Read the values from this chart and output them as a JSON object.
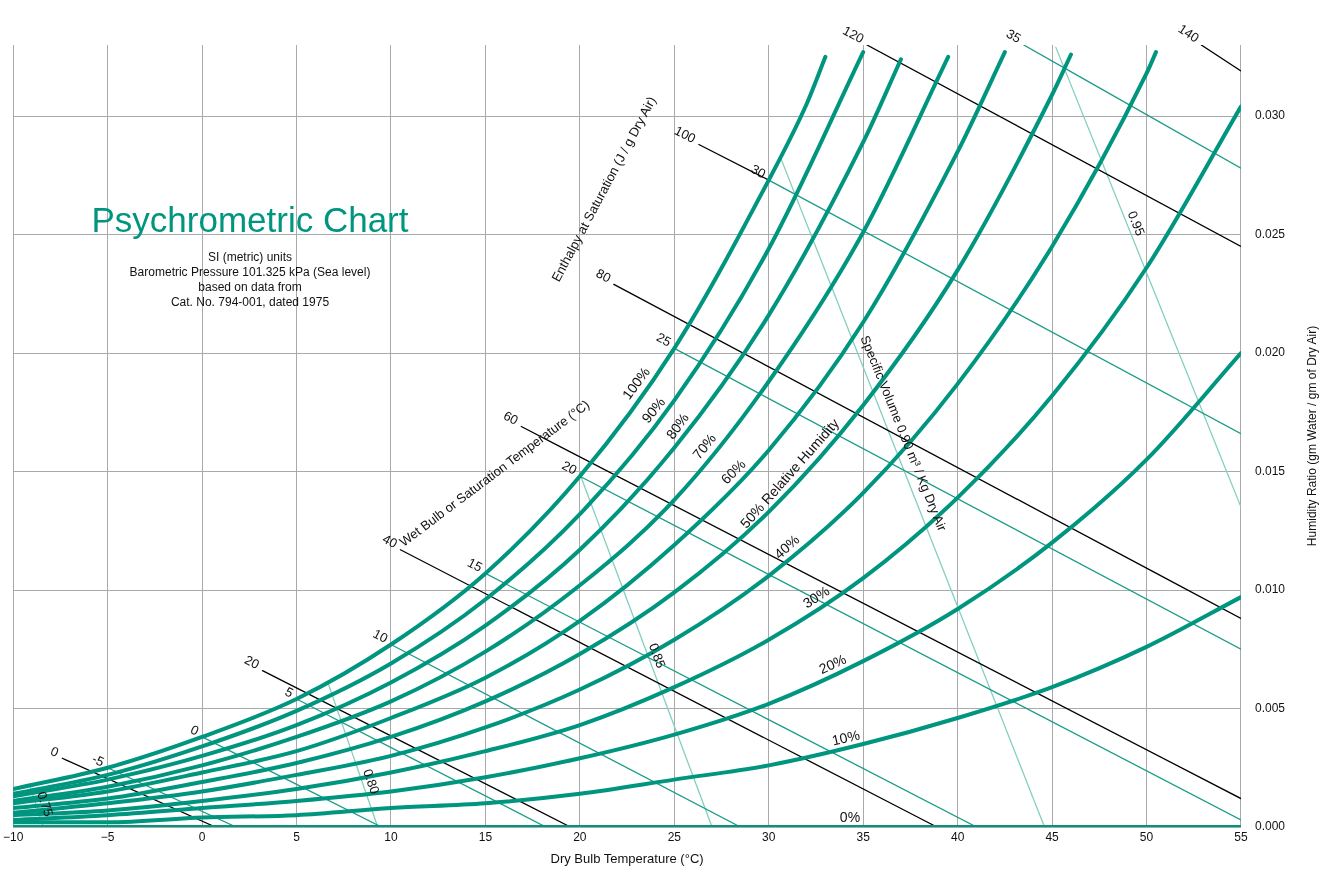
{
  "chart_data": {
    "type": "line",
    "title": "Psychrometric Chart",
    "subtitle": "SI (metric) units\nBarometric Pressure 101.325 kPa (Sea level)\nbased on data from\nCat. No. 794-001, dated 1975",
    "xlabel": "Dry Bulb Temperature (°C)",
    "ylabel": "Humidity Ratio (gm Water / gm of Dry Air)",
    "xlim": [
      -10,
      55
    ],
    "ylim": [
      0,
      0.033
    ],
    "xticks": [
      {
        "value": -10,
        "label": "−10"
      },
      {
        "value": -5,
        "label": "−5"
      },
      0,
      5,
      10,
      15,
      20,
      25,
      30,
      35,
      40,
      45,
      50,
      55
    ],
    "yticks": [
      {
        "value": 0,
        "label": "0.000"
      },
      {
        "value": 0.005,
        "label": "0.005"
      },
      {
        "value": 0.01,
        "label": "0.010"
      },
      {
        "value": 0.015,
        "label": "0.015"
      },
      {
        "value": 0.02,
        "label": "0.020"
      },
      {
        "value": 0.025,
        "label": "0.025"
      },
      {
        "value": 0.03,
        "label": "0.030"
      }
    ],
    "grid": true,
    "marker": "none",
    "line_style": "solid",
    "annotations": [
      "Enthalpy at Saturation (J / g Dry Air)",
      "Wet Bulb or Saturation Temperature (°C)",
      {
        "text": "Specific Volume 0.90 m³ / Kg Dry Air",
        "x": 37.1,
        "y": 0.0166
      }
    ],
    "series": [
      {
        "name": "100%",
        "color": "#00957f",
        "x": [
          -10,
          -5,
          0,
          5,
          10,
          15,
          20,
          25,
          30,
          32,
          33
        ],
        "values": [
          0.0016,
          0.0025,
          0.0038,
          0.0054,
          0.0077,
          0.0107,
          0.0148,
          0.0202,
          0.0273,
          0.0305,
          0.0325
        ]
      },
      {
        "name": "90%",
        "color": "#00957f",
        "x": [
          -10,
          -5,
          0,
          5,
          10,
          15,
          20,
          25,
          30,
          35
        ],
        "values": [
          0.0014,
          0.0022,
          0.0034,
          0.0049,
          0.0069,
          0.0096,
          0.0132,
          0.018,
          0.0244,
          0.0327
        ]
      },
      {
        "name": "80%",
        "color": "#00957f",
        "x": [
          -10,
          -5,
          0,
          5,
          10,
          15,
          20,
          25,
          30,
          35,
          37
        ],
        "values": [
          0.0013,
          0.002,
          0.003,
          0.0043,
          0.0061,
          0.0085,
          0.0117,
          0.016,
          0.0216,
          0.0289,
          0.0324
        ]
      },
      {
        "name": "70%",
        "color": "#00957f",
        "x": [
          -10,
          -5,
          0,
          5,
          10,
          15,
          20,
          25,
          30,
          35,
          39.5
        ],
        "values": [
          0.0011,
          0.0017,
          0.0026,
          0.0038,
          0.0053,
          0.0074,
          0.0102,
          0.0138,
          0.0188,
          0.0251,
          0.0325
        ]
      },
      {
        "name": "60%",
        "color": "#00957f",
        "x": [
          -10,
          -5,
          0,
          5,
          10,
          15,
          20,
          25,
          30,
          35,
          40,
          42.5
        ],
        "values": [
          0.001,
          0.0015,
          0.0023,
          0.0032,
          0.0046,
          0.0063,
          0.0087,
          0.0119,
          0.0159,
          0.0213,
          0.0285,
          0.0327
        ]
      },
      {
        "name": "50% Relative Humidity",
        "color": "#00957f",
        "x": [
          -10,
          -5,
          0,
          5,
          10,
          15,
          20,
          25,
          30,
          35,
          40,
          45,
          46
        ],
        "values": [
          0.0008,
          0.0012,
          0.0019,
          0.0027,
          0.0038,
          0.0053,
          0.0073,
          0.0099,
          0.0133,
          0.0178,
          0.0235,
          0.0309,
          0.0326
        ]
      },
      {
        "name": "40%",
        "color": "#00957f",
        "x": [
          -10,
          -5,
          0,
          5,
          10,
          15,
          20,
          25,
          30,
          35,
          40,
          45,
          50,
          50.5
        ],
        "values": [
          0.0006,
          0.001,
          0.0015,
          0.0022,
          0.003,
          0.0042,
          0.0058,
          0.0079,
          0.0106,
          0.0141,
          0.0187,
          0.0245,
          0.0318,
          0.0327
        ]
      },
      {
        "name": "30%",
        "color": "#00957f",
        "x": [
          -10,
          -5,
          0,
          5,
          10,
          15,
          20,
          25,
          30,
          35,
          40,
          45,
          50,
          55
        ],
        "values": [
          0.0005,
          0.0007,
          0.0011,
          0.0016,
          0.0023,
          0.0032,
          0.0043,
          0.0059,
          0.0079,
          0.0105,
          0.0139,
          0.0182,
          0.0236,
          0.0304
        ]
      },
      {
        "name": "20%",
        "color": "#00957f",
        "x": [
          -10,
          -5,
          0,
          5,
          10,
          15,
          20,
          25,
          30,
          35,
          40,
          45,
          50,
          55
        ],
        "values": [
          0.0003,
          0.0005,
          0.0008,
          0.0011,
          0.0015,
          0.0021,
          0.0029,
          0.0039,
          0.0052,
          0.007,
          0.0092,
          0.012,
          0.0155,
          0.02
        ]
      },
      {
        "name": "10%",
        "color": "#00957f",
        "x": [
          -10,
          -5,
          0,
          5,
          10,
          15,
          20,
          25,
          30,
          35,
          40,
          45,
          50,
          55
        ],
        "values": [
          0.0002,
          0.0002,
          0.0004,
          0.0005,
          0.0008,
          0.001,
          0.0014,
          0.002,
          0.0026,
          0.0035,
          0.0046,
          0.0059,
          0.0076,
          0.0097
        ]
      },
      {
        "name": "0%",
        "color": "#00957f",
        "x": [
          -10,
          -5,
          0,
          5,
          10,
          15,
          20,
          25,
          30,
          35,
          40,
          45,
          50,
          55
        ],
        "values": [
          0,
          0,
          0,
          0,
          0,
          0,
          0,
          0,
          0,
          0,
          0,
          0,
          0,
          0
        ]
      },
      {
        "name": "-5",
        "color": "#1a9c86",
        "x": [
          -5,
          1.8
        ],
        "values": [
          0.0025,
          0
        ]
      },
      {
        "name": "0",
        "color": "#1a9c86",
        "x": [
          0,
          9.5
        ],
        "values": [
          0.0038,
          0
        ]
      },
      {
        "name": "5",
        "color": "#1a9c86",
        "x": [
          5,
          18.2
        ],
        "values": [
          0.0054,
          0
        ]
      },
      {
        "name": "10",
        "color": "#1a9c86",
        "x": [
          10,
          28.5
        ],
        "values": [
          0.0077,
          0
        ]
      },
      {
        "name": "15",
        "color": "#1a9c86",
        "x": [
          15,
          41
        ],
        "values": [
          0.0107,
          0
        ]
      },
      {
        "name": "20",
        "color": "#1a9c86",
        "x": [
          20,
          55
        ],
        "values": [
          0.0148,
          0.0003
        ]
      },
      {
        "name": "25",
        "color": "#1a9c86",
        "x": [
          25,
          55
        ],
        "values": [
          0.0202,
          0.0075
        ]
      },
      {
        "name": "30",
        "color": "#1a9c86",
        "x": [
          30,
          55
        ],
        "values": [
          0.0273,
          0.0166
        ]
      },
      {
        "name": "35",
        "color": "#1a9c86",
        "x": [
          43.5,
          55
        ],
        "values": [
          0.033,
          0.0278
        ]
      },
      {
        "name": "0",
        "color": "#000000",
        "x": [
          -7.4,
          0.7
        ],
        "values": [
          0.0029,
          0
        ]
      },
      {
        "name": "20",
        "color": "#000000",
        "x": [
          3.2,
          19.5
        ],
        "values": [
          0.0066,
          0
        ]
      },
      {
        "name": "40",
        "color": "#000000",
        "x": [
          10.5,
          38.9
        ],
        "values": [
          0.0117,
          0
        ]
      },
      {
        "name": "60",
        "color": "#000000",
        "x": [
          16.9,
          55
        ],
        "values": [
          0.0169,
          0.0012
        ]
      },
      {
        "name": "80",
        "color": "#000000",
        "x": [
          21.8,
          55
        ],
        "values": [
          0.0229,
          0.0088
        ]
      },
      {
        "name": "100",
        "color": "#000000",
        "x": [
          26.3,
          30
        ],
        "values": [
          0.0288,
          0.0273
        ]
      },
      {
        "name": "120",
        "color": "#000000",
        "x": [
          35.2,
          55
        ],
        "values": [
          0.033,
          0.0245
        ]
      },
      {
        "name": "140",
        "color": "#000000",
        "x": [
          52.9,
          55
        ],
        "values": [
          0.033,
          0.0319
        ]
      },
      {
        "name": "0.75",
        "color": "#82cfc0",
        "x": [
          -9.1,
          -8.4
        ],
        "values": [
          0.0017,
          0
        ]
      },
      {
        "name": "0.80",
        "color": "#82cfc0",
        "x": [
          6.7,
          9.3
        ],
        "values": [
          0.006,
          0
        ]
      },
      {
        "name": "0.85",
        "color": "#82cfc0",
        "x": [
          20.05,
          27
        ],
        "values": [
          0.0148,
          0
        ]
      },
      {
        "color": "#82cfc0",
        "x": [
          30.6,
          44.6
        ],
        "values": [
          0.0283,
          0
        ]
      },
      {
        "name": "0.95",
        "color": "#82cfc0",
        "x": [
          45.2,
          55
        ],
        "values": [
          0.0329,
          0.0135
        ]
      }
    ]
  }
}
